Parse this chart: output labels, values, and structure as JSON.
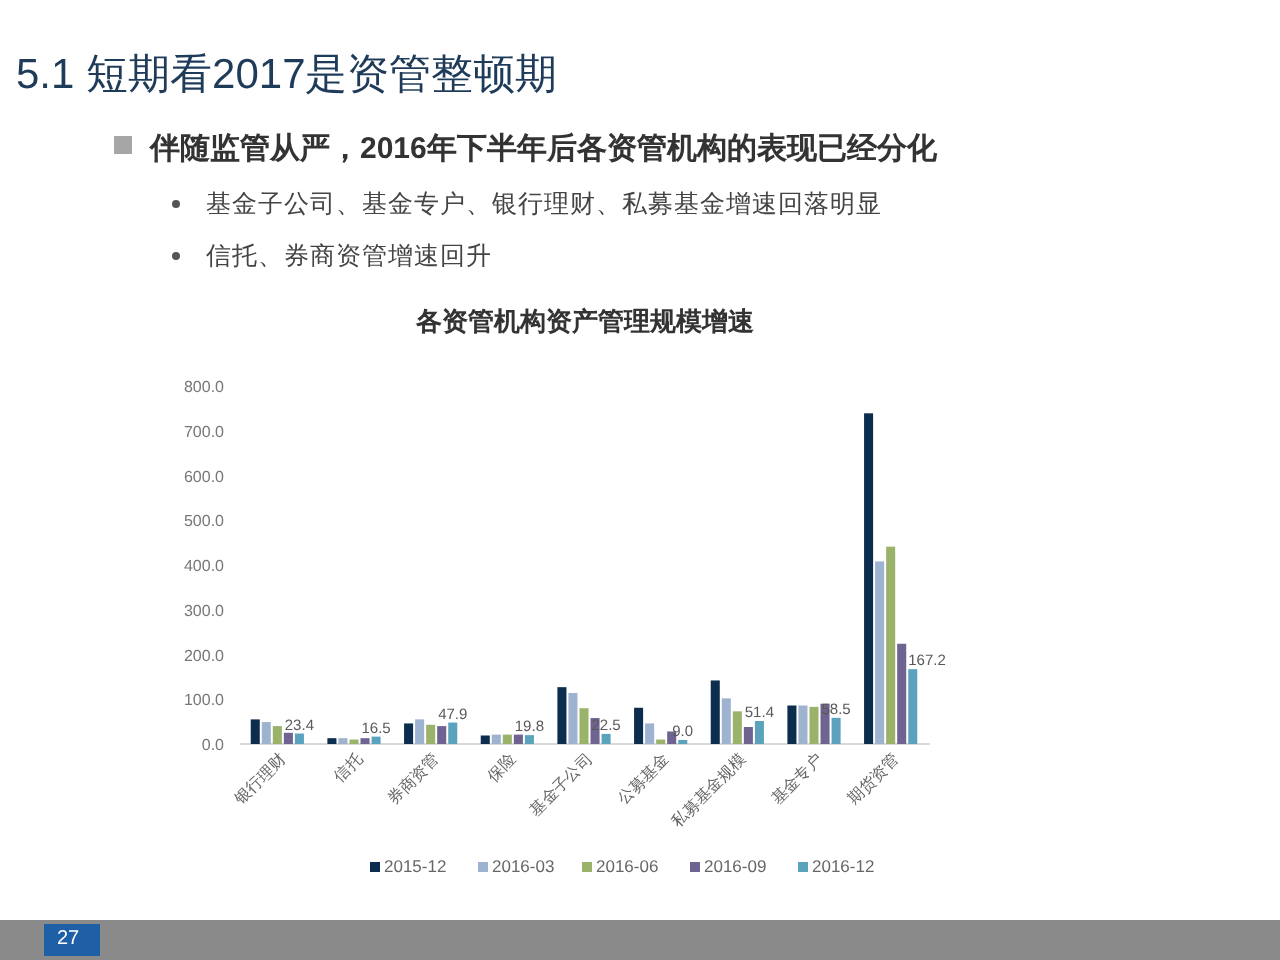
{
  "chart_data": {
    "type": "bar",
    "title": "各资管机构资产管理规模增速",
    "annotations": [
      "5.1 短期看2017是资管整顿期",
      "伴随监管从严，2016年下半年后各资管机构的表现已经分化",
      "基金子公司、基金专户、银行理财、私募基金增速回落明显",
      "信托、券商资管增速回升",
      "27"
    ],
    "categories": [
      "银行理财",
      "信托",
      "券商资管",
      "保险",
      "基金子公司",
      "公募基金",
      "私募基金规模",
      "基金专户",
      "期货资管"
    ],
    "series": [
      {
        "name": "2015-12",
        "color": "#0d2d4f",
        "values": [
          55,
          13,
          46,
          19,
          127,
          81,
          142,
          86,
          739
        ]
      },
      {
        "name": "2016-03",
        "color": "#9db3cf",
        "values": [
          49,
          13,
          55,
          21,
          114,
          46,
          102,
          86,
          408
        ]
      },
      {
        "name": "2016-06",
        "color": "#9bb26b",
        "values": [
          40,
          10,
          43,
          21,
          80,
          10,
          73,
          83,
          441
        ]
      },
      {
        "name": "2016-09",
        "color": "#6f6391",
        "values": [
          25,
          13,
          40,
          21,
          58,
          28,
          38,
          90,
          224
        ]
      },
      {
        "name": "2016-12",
        "color": "#5ba3bd",
        "values": [
          23.4,
          16.5,
          47.9,
          19.8,
          22.5,
          9.0,
          51.4,
          58.5,
          167.2
        ],
        "value_labels": [
          "23.4",
          "16.5",
          "47.9",
          "19.8",
          "22.5",
          "9.0",
          "51.4",
          "58.5",
          "167.2"
        ]
      }
    ],
    "ylim": [
      0,
      800
    ],
    "yticks": [
      {
        "value": 0,
        "label": "0.0"
      },
      {
        "value": 100,
        "label": "100.0"
      },
      {
        "value": 200,
        "label": "200.0"
      },
      {
        "value": 300,
        "label": "300.0"
      },
      {
        "value": 400,
        "label": "400.0"
      },
      {
        "value": 500,
        "label": "500.0"
      },
      {
        "value": 600,
        "label": "600.0"
      },
      {
        "value": 700,
        "label": "700.0"
      },
      {
        "value": 800,
        "label": "800.0"
      }
    ],
    "legend": "bottom",
    "grid": false
  }
}
